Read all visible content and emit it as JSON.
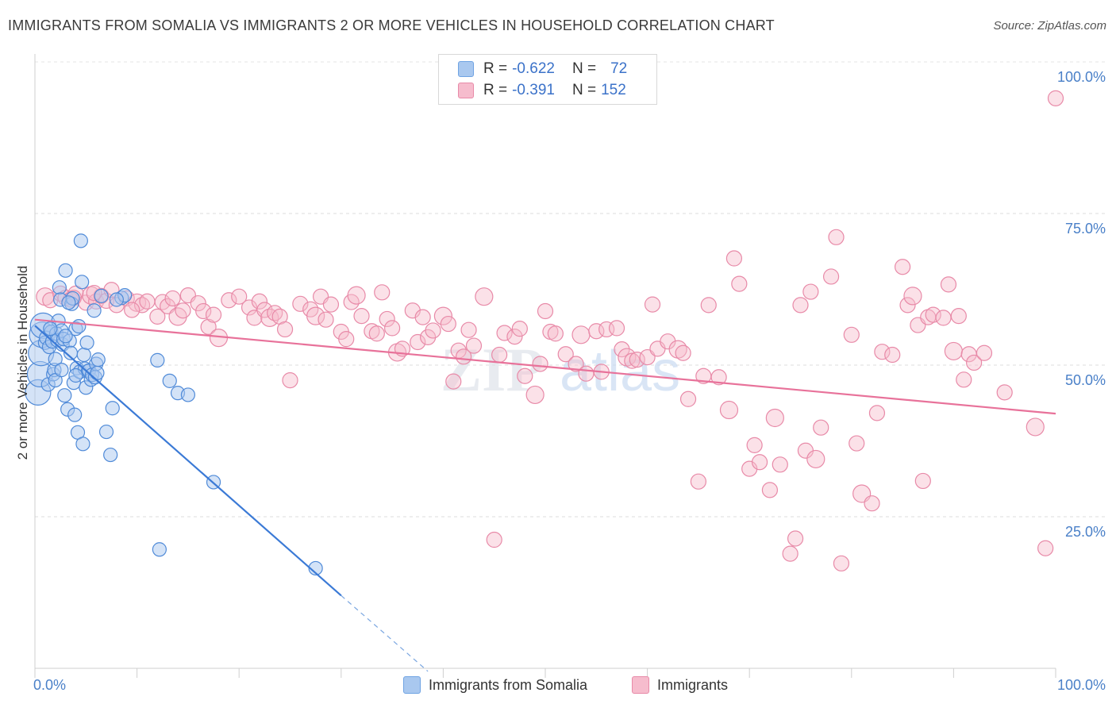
{
  "header": {
    "title": "IMMIGRANTS FROM SOMALIA VS IMMIGRANTS 2 OR MORE VEHICLES IN HOUSEHOLD CORRELATION CHART",
    "source": "Source: ZipAtlas.com"
  },
  "legend": {
    "r_label": "R =",
    "n_label": "N =",
    "rows": [
      {
        "r": "-0.622",
        "n": "72",
        "color": "#a9c8ef"
      },
      {
        "r": "-0.391",
        "n": "152",
        "color": "#f6bccd"
      }
    ]
  },
  "bottom_legend": [
    {
      "label": "Immigrants from Somalia",
      "color": "#a9c8ef"
    },
    {
      "label": "Immigrants",
      "color": "#f6bccd"
    }
  ],
  "watermark": {
    "zip": "ZIP",
    "atlas": "atlas"
  },
  "chart_data": {
    "type": "scatter",
    "title": "IMMIGRANTS FROM SOMALIA VS IMMIGRANTS 2 OR MORE VEHICLES IN HOUSEHOLD CORRELATION CHART",
    "xlabel": "",
    "ylabel": "2 or more Vehicles in Household",
    "xlim": [
      0,
      100
    ],
    "ylim": [
      0,
      100
    ],
    "x_tick_labels": [
      "0.0%",
      "100.0%"
    ],
    "y_tick_labels": [
      "100.0%",
      "75.0%",
      "50.0%",
      "25.0%"
    ],
    "y_ticks": [
      100,
      75,
      50,
      25
    ],
    "grid": "horizontal dashed",
    "legend_position": "top-center",
    "series": [
      {
        "name": "Immigrants from Somalia",
        "color": "#6fa3e3",
        "fill": "#a9c8ef",
        "stroke": "#4f8ad8",
        "r": -0.622,
        "n": 72,
        "trend": {
          "x": [
            0,
            30
          ],
          "y": [
            56.5,
            12
          ],
          "dashed_to": [
            38.5,
            -0.5
          ]
        },
        "points": [
          [
            0.3,
            45.5
          ],
          [
            0.5,
            48.5
          ],
          [
            0.6,
            52.0
          ],
          [
            0.7,
            55.0
          ],
          [
            0.8,
            56.5
          ],
          [
            1.0,
            53.7
          ],
          [
            1.1,
            54.5
          ],
          [
            1.3,
            46.8
          ],
          [
            1.4,
            53.0
          ],
          [
            1.6,
            55.5
          ],
          [
            1.7,
            53.9
          ],
          [
            1.8,
            48.5
          ],
          [
            1.9,
            49.2
          ],
          [
            2.0,
            51.0
          ],
          [
            2.1,
            55.2
          ],
          [
            2.2,
            54.1
          ],
          [
            2.3,
            57.3
          ],
          [
            2.4,
            62.8
          ],
          [
            2.5,
            60.8
          ],
          [
            2.6,
            55.7
          ],
          [
            2.7,
            53.4
          ],
          [
            2.8,
            54.3
          ],
          [
            2.9,
            45.0
          ],
          [
            3.0,
            65.6
          ],
          [
            3.2,
            42.7
          ],
          [
            3.4,
            54.0
          ],
          [
            3.5,
            52.0
          ],
          [
            3.6,
            60.1
          ],
          [
            3.7,
            61.0
          ],
          [
            3.8,
            47.1
          ],
          [
            3.9,
            41.8
          ],
          [
            4.0,
            56.0
          ],
          [
            4.1,
            49.5
          ],
          [
            4.2,
            38.9
          ],
          [
            4.3,
            56.4
          ],
          [
            4.4,
            48.9
          ],
          [
            4.5,
            70.5
          ],
          [
            4.6,
            63.7
          ],
          [
            4.7,
            37.0
          ],
          [
            4.8,
            51.7
          ],
          [
            4.9,
            49.4
          ],
          [
            5.0,
            46.3
          ],
          [
            5.1,
            53.7
          ],
          [
            5.2,
            49.0
          ],
          [
            5.3,
            49.1
          ],
          [
            5.5,
            47.6
          ],
          [
            5.6,
            48.4
          ],
          [
            5.8,
            59.0
          ],
          [
            6.0,
            50.2
          ],
          [
            6.2,
            50.9
          ],
          [
            6.5,
            61.4
          ],
          [
            7.0,
            39.0
          ],
          [
            7.4,
            35.2
          ],
          [
            7.6,
            42.9
          ],
          [
            8.5,
            61.1
          ],
          [
            8.8,
            61.5
          ],
          [
            8.0,
            60.8
          ],
          [
            5.9,
            48.0
          ],
          [
            4.0,
            48.3
          ],
          [
            3.3,
            60.3
          ],
          [
            12.0,
            50.8
          ],
          [
            12.2,
            19.6
          ],
          [
            13.2,
            47.4
          ],
          [
            14.0,
            45.4
          ],
          [
            15.0,
            45.1
          ],
          [
            17.5,
            30.7
          ],
          [
            27.5,
            16.5
          ],
          [
            1.5,
            56.0
          ],
          [
            2.0,
            47.5
          ],
          [
            3.0,
            54.8
          ],
          [
            6.1,
            48.7
          ],
          [
            2.6,
            49.2
          ]
        ]
      },
      {
        "name": "Immigrants",
        "color": "#e8729a",
        "fill": "#f6bccd",
        "stroke": "#e88aa8",
        "r": -0.391,
        "n": 152,
        "trend": {
          "x": [
            0,
            100
          ],
          "y": [
            57.5,
            42
          ]
        },
        "points": [
          [
            1.0,
            61.3
          ],
          [
            1.5,
            60.7
          ],
          [
            2.5,
            61.8
          ],
          [
            3.0,
            61.1
          ],
          [
            3.5,
            60.8
          ],
          [
            4.0,
            61.8
          ],
          [
            5.0,
            60.3
          ],
          [
            5.5,
            61.5
          ],
          [
            6.0,
            60.5
          ],
          [
            6.5,
            61.4
          ],
          [
            7.0,
            60.6
          ],
          [
            7.5,
            62.4
          ],
          [
            8.0,
            59.9
          ],
          [
            9.0,
            61.0
          ],
          [
            10.0,
            60.3
          ],
          [
            10.5,
            59.9
          ],
          [
            11.0,
            60.5
          ],
          [
            12.0,
            58.0
          ],
          [
            12.5,
            60.4
          ],
          [
            13.0,
            59.7
          ],
          [
            13.5,
            61.0
          ],
          [
            14.0,
            58.0
          ],
          [
            14.5,
            59.0
          ],
          [
            15.0,
            61.5
          ],
          [
            16.0,
            60.2
          ],
          [
            16.5,
            58.9
          ],
          [
            17.0,
            56.3
          ],
          [
            17.5,
            58.3
          ],
          [
            18.0,
            54.5
          ],
          [
            19.0,
            60.7
          ],
          [
            20.0,
            61.3
          ],
          [
            21.0,
            59.5
          ],
          [
            21.5,
            57.8
          ],
          [
            22.0,
            60.5
          ],
          [
            22.5,
            59.1
          ],
          [
            23.0,
            57.8
          ],
          [
            23.5,
            58.6
          ],
          [
            24.0,
            58.0
          ],
          [
            24.5,
            55.9
          ],
          [
            25.0,
            47.5
          ],
          [
            26.0,
            60.1
          ],
          [
            27.0,
            59.2
          ],
          [
            27.5,
            58.1
          ],
          [
            28.0,
            61.3
          ],
          [
            28.5,
            57.5
          ],
          [
            29.0,
            60.0
          ],
          [
            30.0,
            55.5
          ],
          [
            30.5,
            54.3
          ],
          [
            31.0,
            60.4
          ],
          [
            31.5,
            61.5
          ],
          [
            32.0,
            58.1
          ],
          [
            33.0,
            55.6
          ],
          [
            33.5,
            55.2
          ],
          [
            34.0,
            62.0
          ],
          [
            34.5,
            57.6
          ],
          [
            35.0,
            56.1
          ],
          [
            35.5,
            52.1
          ],
          [
            36.0,
            52.7
          ],
          [
            37.0,
            59.0
          ],
          [
            37.5,
            53.8
          ],
          [
            38.0,
            57.9
          ],
          [
            38.5,
            54.6
          ],
          [
            39.0,
            55.7
          ],
          [
            40.0,
            58.1
          ],
          [
            40.5,
            56.8
          ],
          [
            41.0,
            47.3
          ],
          [
            41.5,
            52.4
          ],
          [
            42.0,
            51.4
          ],
          [
            42.5,
            55.8
          ],
          [
            43.0,
            53.2
          ],
          [
            44.0,
            61.3
          ],
          [
            45.0,
            21.2
          ],
          [
            45.5,
            51.7
          ],
          [
            46.0,
            55.3
          ],
          [
            47.0,
            54.7
          ],
          [
            47.5,
            56.0
          ],
          [
            48.0,
            48.2
          ],
          [
            49.0,
            45.1
          ],
          [
            49.5,
            50.2
          ],
          [
            50.0,
            58.9
          ],
          [
            50.5,
            55.5
          ],
          [
            51.0,
            55.2
          ],
          [
            52.0,
            51.8
          ],
          [
            53.0,
            50.2
          ],
          [
            53.5,
            55.0
          ],
          [
            54.0,
            48.6
          ],
          [
            55.0,
            55.6
          ],
          [
            55.5,
            48.9
          ],
          [
            56.0,
            55.9
          ],
          [
            57.0,
            56.1
          ],
          [
            57.5,
            52.6
          ],
          [
            58.0,
            51.3
          ],
          [
            58.5,
            50.7
          ],
          [
            59.0,
            50.9
          ],
          [
            60.0,
            51.3
          ],
          [
            60.5,
            60.0
          ],
          [
            61.0,
            52.7
          ],
          [
            62.0,
            53.9
          ],
          [
            63.0,
            52.6
          ],
          [
            63.5,
            52.0
          ],
          [
            64.0,
            44.4
          ],
          [
            65.0,
            30.8
          ],
          [
            65.5,
            48.2
          ],
          [
            66.0,
            59.9
          ],
          [
            67.0,
            48.0
          ],
          [
            68.0,
            42.6
          ],
          [
            68.5,
            67.6
          ],
          [
            69.0,
            63.4
          ],
          [
            70.0,
            32.9
          ],
          [
            70.5,
            36.8
          ],
          [
            71.0,
            34.0
          ],
          [
            72.0,
            29.4
          ],
          [
            72.5,
            41.3
          ],
          [
            73.0,
            33.6
          ],
          [
            74.0,
            18.9
          ],
          [
            74.5,
            21.4
          ],
          [
            75.0,
            59.9
          ],
          [
            75.5,
            35.9
          ],
          [
            76.0,
            62.1
          ],
          [
            76.5,
            34.5
          ],
          [
            77.0,
            39.7
          ],
          [
            78.0,
            64.6
          ],
          [
            78.5,
            71.1
          ],
          [
            79.0,
            17.3
          ],
          [
            80.0,
            55.0
          ],
          [
            80.5,
            37.1
          ],
          [
            81.0,
            28.8
          ],
          [
            82.0,
            27.2
          ],
          [
            82.5,
            42.1
          ],
          [
            83.0,
            52.2
          ],
          [
            84.0,
            51.7
          ],
          [
            85.0,
            66.2
          ],
          [
            85.5,
            59.9
          ],
          [
            86.0,
            61.4
          ],
          [
            86.5,
            56.6
          ],
          [
            87.0,
            30.9
          ],
          [
            87.5,
            57.9
          ],
          [
            88.0,
            58.3
          ],
          [
            89.0,
            57.8
          ],
          [
            89.5,
            63.3
          ],
          [
            90.0,
            52.3
          ],
          [
            90.5,
            58.1
          ],
          [
            91.0,
            47.6
          ],
          [
            91.5,
            51.8
          ],
          [
            92.0,
            50.4
          ],
          [
            93.0,
            52.0
          ],
          [
            95.0,
            45.5
          ],
          [
            98.0,
            39.8
          ],
          [
            99.0,
            19.8
          ],
          [
            100.0,
            94.0
          ],
          [
            3.8,
            61.1
          ],
          [
            5.8,
            61.9
          ],
          [
            9.5,
            59.1
          ]
        ]
      }
    ]
  }
}
